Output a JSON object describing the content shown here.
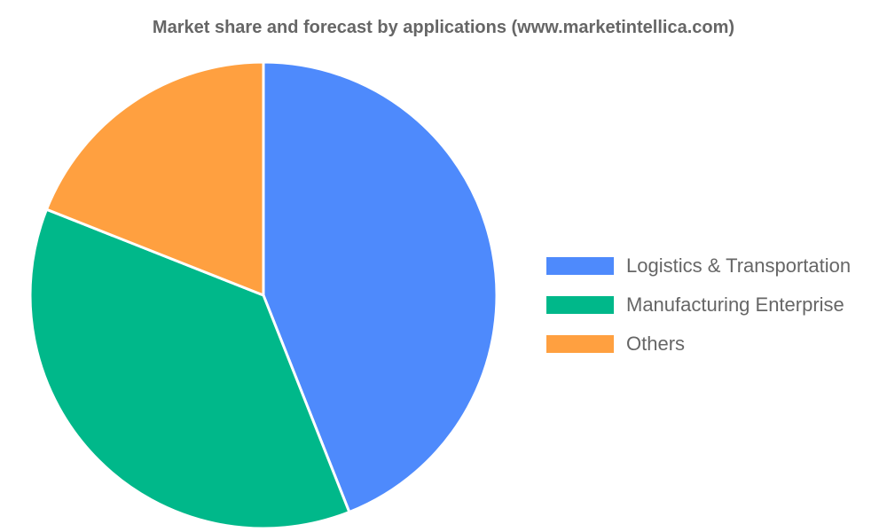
{
  "chart_data": {
    "type": "pie",
    "title": "Market share and forecast by applications (www.marketintellica.com)",
    "categories": [
      "Logistics & Transportation",
      "Manufacturing Enterprise",
      "Others"
    ],
    "values": [
      44,
      37,
      19
    ],
    "colors": [
      "#4e8afc",
      "#00b88a",
      "#ffa040"
    ],
    "legend_position": "right"
  }
}
